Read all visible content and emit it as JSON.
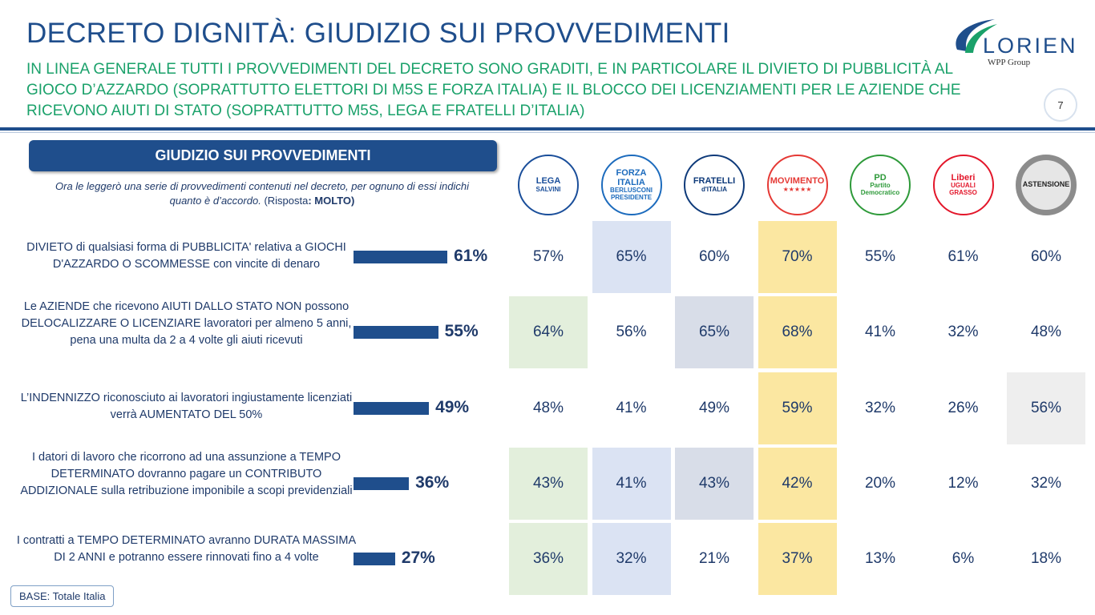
{
  "title": "DECRETO DIGNITÀ: GIUDIZIO SUI PROVVEDIMENTI",
  "subtitle": "IN LINEA GENERALE TUTTI I PROVVEDIMENTI DEL DECRETO SONO GRADITI, E IN PARTICOLARE IL DIVIETO DI PUBBLICITÀ AL GIOCO D’AZZARDO (SOPRATTUTTO ELETTORI DI M5S E FORZA ITALIA) E IL BLOCCO DEI LICENZIAMENTI PER LE AZIENDE CHE RICEVONO AIUTI DI STATO (SOPRATTUTTO M5S, LEGA E FRATELLI D’ITALIA)",
  "logo": {
    "name": "LORIEN",
    "group": "WPP Group"
  },
  "page_number": "7",
  "section_header": "GIUDIZIO SUI PROVVEDIMENTI",
  "question": {
    "text": "Ora le leggerò una serie di provvedimenti contenuti nel decreto, per ognuno di essi indichi quanto è d’accordo.",
    "response_prefix": "(Risposta",
    "response_value": ": MOLTO)"
  },
  "parties": [
    {
      "id": "lega",
      "lines": [
        "LEGA",
        "SALVINI"
      ],
      "color": "#1a4e9a"
    },
    {
      "id": "forza-italia",
      "lines": [
        "FORZA ITALIA",
        "BERLUSCONI",
        "PRESIDENTE"
      ],
      "color": "#1c6bbd"
    },
    {
      "id": "fratelli-italia",
      "lines": [
        "FRATELLI",
        "d'ITALIA"
      ],
      "color": "#0e3a7a"
    },
    {
      "id": "movimento",
      "lines": [
        "MOVIMENTO",
        "★★★★★"
      ],
      "color": "#e53935"
    },
    {
      "id": "pd",
      "lines": [
        "PD",
        "Partito Democratico"
      ],
      "color": "#2e9a3a"
    },
    {
      "id": "liberi-uguali",
      "lines": [
        "Liberi",
        "UGUALI",
        "GRASSO"
      ],
      "color": "#e3162a"
    },
    {
      "id": "astensione",
      "lines": [
        "ASTENSIONE"
      ],
      "color": "#9a9a9a"
    }
  ],
  "chart_data": {
    "type": "bar",
    "categories": [
      "DIVIETO di qualsiasi forma di PUBBLICITA' relativa a GIOCHI D'AZZARDO O SCOMMESSE con vincite di denaro",
      "Le AZIENDE che ricevono AIUTI DALLO STATO NON possono DELOCALIZZARE O LICENZIARE lavoratori per almeno 5 anni, pena una multa da 2 a 4 volte gli aiuti ricevuti",
      "L’INDENNIZZO riconosciuto ai lavoratori ingiustamente licenziati verrà AUMENTATO DEL 50%",
      "I datori di lavoro che ricorrono ad una assunzione a TEMPO DETERMINATO dovranno pagare un CONTRIBUTO ADDIZIONALE sulla retribuzione imponibile a scopi previdenziali",
      "I contratti a TEMPO DETERMINATO avranno DURATA MASSIMA DI 2 ANNI e potranno essere rinnovati fino a 4 volte"
    ],
    "values": [
      61,
      55,
      49,
      36,
      27
    ],
    "value_labels": [
      "61%",
      "55%",
      "49%",
      "36%",
      "27%"
    ],
    "xlim": [
      0,
      100
    ],
    "bar_color": "#1f4e8c",
    "table": {
      "columns": [
        "LEGA",
        "FORZA ITALIA",
        "FRATELLI D'ITALIA",
        "MOVIMENTO 5 STELLE",
        "PD",
        "LIBERI E UGUALI",
        "ASTENSIONE"
      ],
      "rows": [
        [
          "57%",
          "65%",
          "60%",
          "70%",
          "55%",
          "61%",
          "60%"
        ],
        [
          "64%",
          "56%",
          "65%",
          "68%",
          "41%",
          "32%",
          "48%"
        ],
        [
          "48%",
          "41%",
          "49%",
          "59%",
          "32%",
          "26%",
          "56%"
        ],
        [
          "43%",
          "41%",
          "43%",
          "42%",
          "20%",
          "12%",
          "32%"
        ],
        [
          "36%",
          "32%",
          "21%",
          "37%",
          "13%",
          "6%",
          "18%"
        ]
      ],
      "highlights": [
        [
          null,
          "#dbe3f3",
          null,
          "#fbe7a1",
          null,
          null,
          null
        ],
        [
          "#e3efdc",
          null,
          "#d8dde8",
          "#fbe7a1",
          null,
          null,
          null
        ],
        [
          null,
          null,
          null,
          "#fbe7a1",
          null,
          null,
          "#eeeeee"
        ],
        [
          "#e3efdc",
          "#dbe3f3",
          "#d8dde8",
          "#fbe7a1",
          null,
          null,
          null
        ],
        [
          "#e3efdc",
          "#dbe3f3",
          null,
          "#fbe7a1",
          null,
          null,
          null
        ]
      ]
    }
  },
  "base_label": "BASE: Totale Italia"
}
